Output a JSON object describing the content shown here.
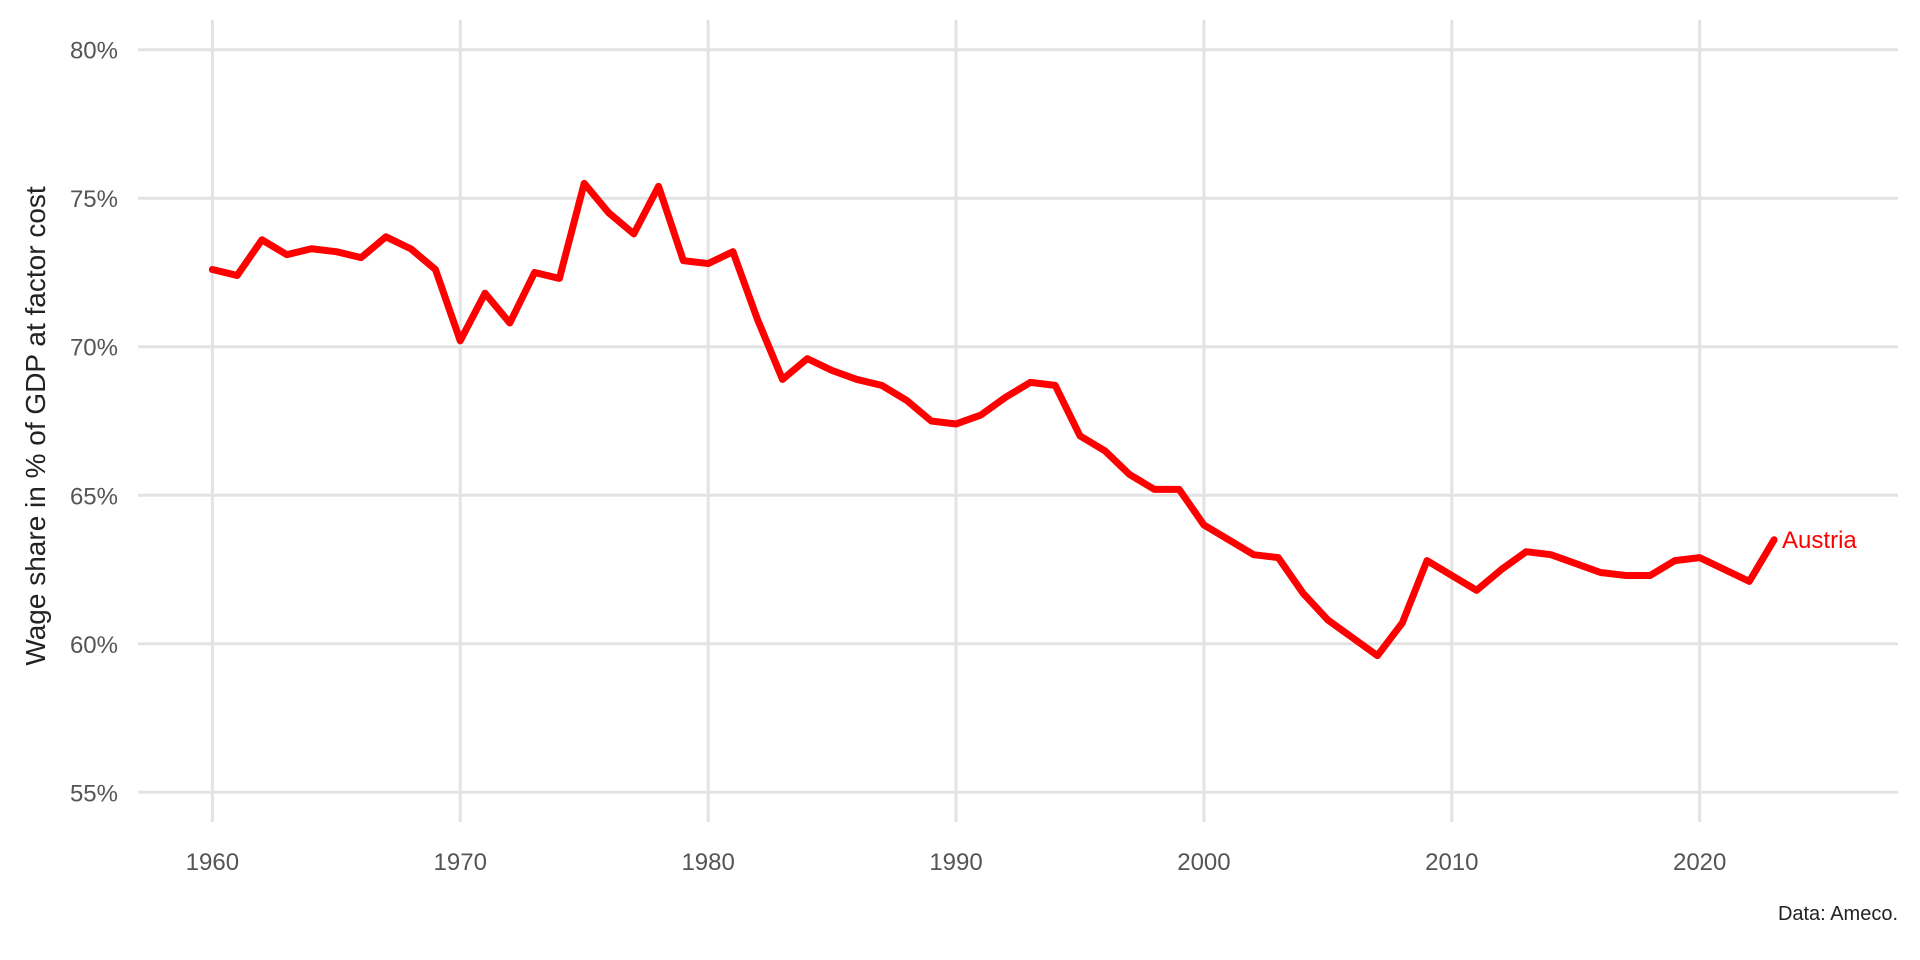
{
  "chart_data": {
    "type": "line",
    "title": "",
    "xlabel": "",
    "ylabel": "Wage share in % of GDP at factor cost",
    "caption": "Data: Ameco.",
    "xlim": [
      1957,
      2028
    ],
    "ylim": [
      54,
      81
    ],
    "x_ticks": [
      1960,
      1970,
      1980,
      1990,
      2000,
      2010,
      2020
    ],
    "x_tick_labels": [
      "1960",
      "1970",
      "1980",
      "1990",
      "2000",
      "2010",
      "2020"
    ],
    "y_ticks": [
      55,
      60,
      65,
      70,
      75,
      80
    ],
    "y_tick_labels": [
      "55%",
      "60%",
      "65%",
      "70%",
      "75%",
      "80%"
    ],
    "grid": true,
    "legend": "none",
    "series": [
      {
        "name": "Austria",
        "color": "#ff0000",
        "x": [
          1960,
          1961,
          1962,
          1963,
          1964,
          1965,
          1966,
          1967,
          1968,
          1969,
          1970,
          1971,
          1972,
          1973,
          1974,
          1975,
          1976,
          1977,
          1978,
          1979,
          1980,
          1981,
          1982,
          1983,
          1984,
          1985,
          1986,
          1987,
          1988,
          1989,
          1990,
          1991,
          1992,
          1993,
          1994,
          1995,
          1996,
          1997,
          1998,
          1999,
          2000,
          2001,
          2002,
          2003,
          2004,
          2005,
          2006,
          2007,
          2008,
          2009,
          2010,
          2011,
          2012,
          2013,
          2014,
          2015,
          2016,
          2017,
          2018,
          2019,
          2020,
          2021,
          2022,
          2023
        ],
        "values": [
          72.6,
          72.4,
          73.6,
          73.1,
          73.3,
          73.2,
          73.0,
          73.7,
          73.3,
          72.6,
          70.2,
          71.8,
          70.8,
          72.5,
          72.3,
          75.5,
          74.5,
          73.8,
          75.4,
          72.9,
          72.8,
          73.2,
          70.9,
          68.9,
          69.6,
          69.2,
          68.9,
          68.7,
          68.2,
          67.5,
          67.4,
          67.7,
          68.3,
          68.8,
          68.7,
          67.0,
          66.5,
          65.7,
          65.2,
          65.2,
          64.0,
          63.5,
          63.0,
          62.9,
          61.7,
          60.8,
          60.2,
          59.6,
          60.7,
          62.8,
          62.3,
          61.8,
          62.5,
          63.1,
          63.0,
          62.7,
          62.4,
          62.3,
          62.3,
          62.8,
          62.9,
          62.5,
          62.1,
          63.5
        ]
      }
    ]
  }
}
